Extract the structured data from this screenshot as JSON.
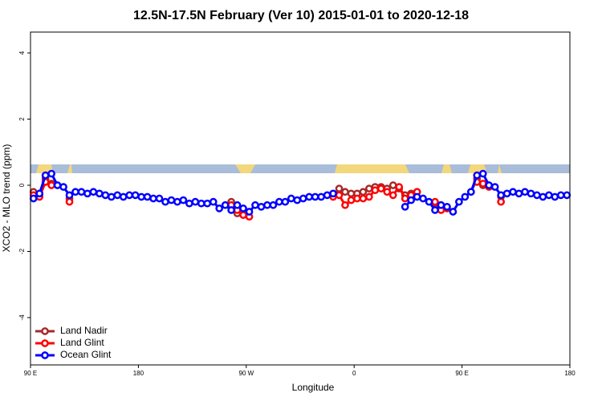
{
  "chart_data": {
    "type": "line",
    "title": "12.5N-17.5N February (Ver 10)   2015-01-01 to 2020-12-18",
    "x_label": "Longitude",
    "y_label": "XCO2 - MLO trend (ppm)",
    "xlim": [
      90,
      540
    ],
    "ylim": [
      -5.43,
      4.63
    ],
    "xticks": [
      {
        "value": 90,
        "label": "90 E"
      },
      180,
      {
        "value": 270,
        "label": "90 W"
      },
      {
        "value": 360,
        "label": "0"
      },
      {
        "value": 450,
        "label": "90 E"
      },
      {
        "value": 540,
        "label": "180"
      }
    ],
    "yticks": [
      -4,
      -2,
      0,
      2,
      4
    ],
    "legend": "bottom-left",
    "x": [
      92.5,
      97.5,
      102.5,
      107.5,
      112.5,
      117.5,
      122.5,
      127.5,
      132.5,
      137.5,
      142.5,
      147.5,
      152.5,
      157.5,
      162.5,
      167.5,
      172.5,
      177.5,
      182.5,
      187.5,
      192.5,
      197.5,
      202.5,
      207.5,
      212.5,
      217.5,
      222.5,
      227.5,
      232.5,
      237.5,
      242.5,
      247.5,
      252.5,
      257.5,
      262.5,
      267.5,
      272.5,
      277.5,
      282.5,
      287.5,
      292.5,
      297.5,
      302.5,
      307.5,
      312.5,
      317.5,
      322.5,
      327.5,
      332.5,
      337.5,
      342.5,
      347.5,
      352.5,
      357.5,
      362.5,
      367.5,
      372.5,
      377.5,
      382.5,
      387.5,
      392.5,
      397.5,
      402.5,
      407.5,
      412.5,
      417.5,
      422.5,
      427.5,
      432.5,
      437.5,
      442.5,
      447.5,
      452.5,
      457.5,
      462.5,
      467.5,
      472.5,
      477.5,
      482.5,
      487.5,
      492.5,
      497.5,
      502.5,
      507.5,
      512.5,
      517.5,
      522.5,
      527.5,
      532.5,
      537.5
    ],
    "series": [
      {
        "name": "Land Nadir",
        "color": "#a52a2a",
        "values": [
          -0.2,
          -0.3,
          0.2,
          0.05,
          null,
          null,
          -0.4,
          null,
          null,
          null,
          null,
          null,
          null,
          null,
          null,
          null,
          null,
          null,
          null,
          null,
          null,
          null,
          null,
          null,
          null,
          null,
          null,
          null,
          null,
          null,
          null,
          null,
          null,
          -0.5,
          -0.85,
          null,
          null,
          null,
          null,
          null,
          null,
          null,
          null,
          null,
          null,
          null,
          null,
          null,
          null,
          null,
          -0.3,
          -0.1,
          -0.2,
          -0.25,
          -0.25,
          -0.2,
          -0.1,
          -0.05,
          -0.05,
          -0.1,
          0,
          -0.1,
          -0.3,
          -0.25,
          -0.2,
          null,
          null,
          -0.55,
          -0.6,
          null,
          null,
          null,
          null,
          -0.2,
          0.2,
          0.0,
          null,
          null,
          -0.35,
          null,
          null,
          null,
          null,
          null,
          null,
          null,
          null,
          null,
          null,
          null
        ]
      },
      {
        "name": "Land Glint",
        "color": "#ff0000",
        "values": [
          -0.3,
          -0.35,
          0.1,
          0.0,
          null,
          null,
          -0.5,
          null,
          null,
          null,
          null,
          null,
          null,
          null,
          null,
          null,
          null,
          null,
          null,
          null,
          null,
          null,
          null,
          null,
          null,
          null,
          null,
          null,
          null,
          null,
          null,
          null,
          null,
          -0.6,
          -0.75,
          -0.9,
          -0.95,
          null,
          null,
          null,
          null,
          null,
          null,
          null,
          null,
          null,
          null,
          null,
          null,
          null,
          -0.35,
          -0.3,
          -0.6,
          -0.45,
          -0.4,
          -0.4,
          -0.35,
          -0.15,
          -0.1,
          -0.2,
          -0.3,
          -0.05,
          -0.4,
          -0.3,
          -0.2,
          null,
          null,
          -0.5,
          -0.75,
          -0.7,
          null,
          null,
          null,
          null,
          0.1,
          0.05,
          -0.05,
          null,
          -0.5,
          null,
          null,
          null,
          null,
          null,
          null,
          null,
          null,
          null,
          null,
          null
        ]
      },
      {
        "name": "Ocean Glint",
        "color": "#0000ff",
        "values": [
          -0.4,
          -0.25,
          0.3,
          0.35,
          0.0,
          -0.05,
          -0.3,
          -0.2,
          -0.2,
          -0.25,
          -0.2,
          -0.25,
          -0.3,
          -0.35,
          -0.3,
          -0.35,
          -0.3,
          -0.3,
          -0.35,
          -0.35,
          -0.4,
          -0.4,
          -0.5,
          -0.45,
          -0.5,
          -0.45,
          -0.55,
          -0.5,
          -0.55,
          -0.55,
          -0.5,
          -0.7,
          -0.6,
          -0.75,
          -0.6,
          -0.7,
          -0.8,
          -0.6,
          -0.65,
          -0.6,
          -0.6,
          -0.5,
          -0.5,
          -0.4,
          -0.45,
          -0.4,
          -0.35,
          -0.35,
          -0.35,
          -0.3,
          -0.25,
          null,
          null,
          null,
          null,
          null,
          null,
          null,
          null,
          null,
          null,
          null,
          -0.65,
          -0.45,
          -0.35,
          -0.4,
          -0.5,
          -0.75,
          -0.6,
          -0.65,
          -0.8,
          -0.5,
          -0.35,
          -0.2,
          0.3,
          0.35,
          0.0,
          -0.05,
          -0.3,
          -0.25,
          -0.2,
          -0.25,
          -0.2,
          -0.25,
          -0.3,
          -0.35,
          -0.3,
          -0.35,
          -0.3,
          -0.3
        ]
      }
    ]
  }
}
